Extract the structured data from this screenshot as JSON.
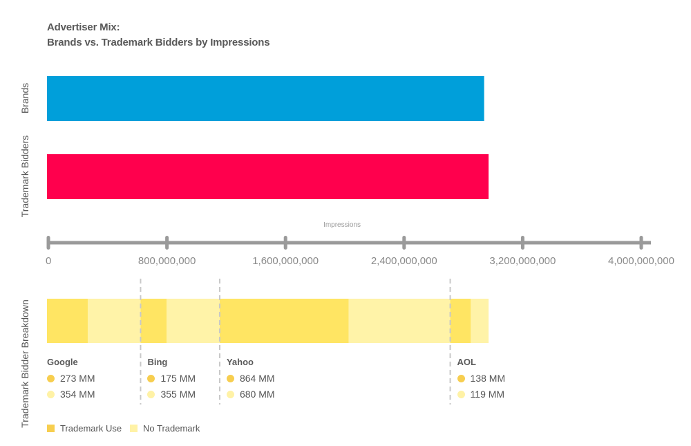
{
  "title_line1": "Advertiser Mix:",
  "title_line2": "Brands vs. Trademark Bidders by Impressions",
  "colors": {
    "brands": "#009fda",
    "trademark_bidders": "#ff004d",
    "trademark_use": "#ffe563",
    "no_trademark": "#fff3a8",
    "trademark_use_dot": "#f7ce4f",
    "no_trademark_dot": "#fff2a6",
    "axis": "#9a9a9a"
  },
  "chart_data": [
    {
      "type": "bar",
      "orientation": "horizontal",
      "categories": [
        "Brands",
        "Trademark Bidders"
      ],
      "values": [
        2940000000,
        2970000000
      ],
      "xlabel": "Impressions",
      "xlim": [
        0,
        4000000000
      ],
      "ticks": [
        "0",
        "800,000,000",
        "1,600,000,000",
        "2,400,000,000",
        "3,200,000,000",
        "4,000,000,000"
      ],
      "tick_values": [
        0,
        800000000,
        1600000000,
        2400000000,
        3200000000,
        4000000000
      ]
    },
    {
      "type": "bar",
      "orientation": "horizontal",
      "stacked": true,
      "ylabel": "Trademark Bidder Breakdown",
      "groups": [
        {
          "name": "Google",
          "trademark_use": 273,
          "no_trademark": 354,
          "trademark_use_label": "273 MM",
          "no_trademark_label": "354 MM"
        },
        {
          "name": "Bing",
          "trademark_use": 175,
          "no_trademark": 355,
          "trademark_use_label": "175 MM",
          "no_trademark_label": "355 MM"
        },
        {
          "name": "Yahoo",
          "trademark_use": 864,
          "no_trademark": 680,
          "trademark_use_label": "864 MM",
          "no_trademark_label": "680 MM"
        },
        {
          "name": "AOL",
          "trademark_use": 138,
          "no_trademark": 119,
          "trademark_use_label": "138 MM",
          "no_trademark_label": "119 MM"
        }
      ],
      "legend": [
        "Trademark Use",
        "No Trademark"
      ],
      "legend_placement": "bottom-left"
    }
  ]
}
